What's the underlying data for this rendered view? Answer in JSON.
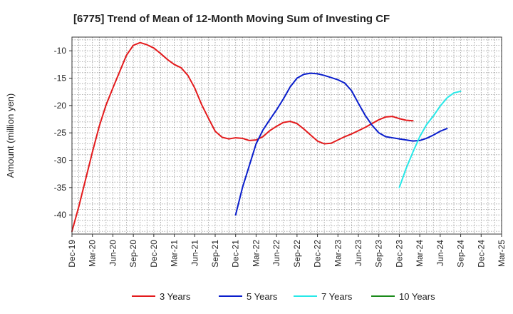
{
  "chart_data": {
    "type": "line",
    "title": "[6775]  Trend of Mean of 12-Month Moving Sum of Investing CF",
    "xlabel": "",
    "ylabel": "Amount (million yen)",
    "x_tick_labels": [
      "Dec-19",
      "Mar-20",
      "Jun-20",
      "Sep-20",
      "Dec-20",
      "Mar-21",
      "Jun-21",
      "Sep-21",
      "Dec-21",
      "Mar-22",
      "Jun-22",
      "Sep-22",
      "Dec-22",
      "Mar-23",
      "Jun-23",
      "Sep-23",
      "Dec-23",
      "Mar-24",
      "Jun-24",
      "Sep-24",
      "Dec-24",
      "Mar-25"
    ],
    "y_ticks": [
      -10,
      -15,
      -20,
      -25,
      -30,
      -35,
      -40
    ],
    "ylim": [
      -43.5,
      -7.5
    ],
    "xlim_months": [
      0,
      63
    ],
    "grid": true,
    "legend_position": "bottom",
    "series": [
      {
        "name": "3 Years",
        "color": "#e31a1c",
        "start_month": 0,
        "values": [
          -43,
          -38.5,
          -33.5,
          -28.5,
          -23.8,
          -19.9,
          -16.8,
          -13.8,
          -10.8,
          -9.0,
          -8.5,
          -8.9,
          -9.5,
          -10.5,
          -11.6,
          -12.5,
          -13.1,
          -14.5,
          -16.8,
          -19.8,
          -22.3,
          -24.7,
          -25.8,
          -26.1,
          -25.9,
          -26.0,
          -26.4,
          -26.3,
          -25.7,
          -24.6,
          -23.8,
          -23.1,
          -22.9,
          -23.3,
          -24.3,
          -25.4,
          -26.5,
          -27.0,
          -26.9,
          -26.3,
          -25.7,
          -25.2,
          -24.6,
          -24.0,
          -23.3,
          -22.6,
          -22.1,
          -22.0,
          -22.4,
          -22.7,
          -22.8
        ]
      },
      {
        "name": "5 Years",
        "color": "#0a1ecc",
        "start_month": 24,
        "values": [
          -40,
          -35,
          -31,
          -27,
          -24.5,
          -22.6,
          -20.8,
          -18.8,
          -16.6,
          -15,
          -14.3,
          -14.1,
          -14.2,
          -14.5,
          -14.9,
          -15.3,
          -15.9,
          -17.3,
          -19.6,
          -21.8,
          -23.6,
          -25.0,
          -25.7,
          -25.9,
          -26.1,
          -26.3,
          -26.5,
          -26.4,
          -26.0,
          -25.4,
          -24.7,
          -24.2
        ]
      },
      {
        "name": "7 Years",
        "color": "#27e8e8",
        "start_month": 48,
        "values": [
          -35,
          -31.5,
          -28.5,
          -25.7,
          -23.5,
          -21.9,
          -20.1,
          -18.6,
          -17.7,
          -17.4
        ]
      },
      {
        "name": "10 Years",
        "color": "#1a8a1a",
        "start_month": 0,
        "values": []
      }
    ]
  }
}
